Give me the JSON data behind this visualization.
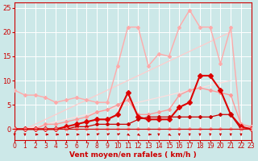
{
  "background_color": "#cce8e8",
  "grid_color": "#aacccc",
  "xlabel": "Vent moyen/en rafales ( km/h )",
  "xlim": [
    0,
    23
  ],
  "ylim": [
    0,
    26
  ],
  "yticks": [
    0,
    5,
    10,
    15,
    20,
    25
  ],
  "xticks": [
    0,
    1,
    2,
    3,
    4,
    5,
    6,
    7,
    8,
    9,
    10,
    11,
    12,
    13,
    14,
    15,
    16,
    17,
    18,
    19,
    20,
    21,
    22,
    23
  ],
  "lines": [
    {
      "x": [
        0,
        1,
        2,
        3,
        4,
        5,
        6,
        7,
        8,
        9,
        10,
        11,
        12,
        13,
        14,
        15,
        16,
        17,
        18,
        19,
        20,
        21
      ],
      "y": [
        0,
        0,
        1,
        2,
        3,
        4,
        5,
        6,
        7,
        8,
        9,
        10,
        11,
        12,
        13,
        14,
        15,
        16,
        17,
        18,
        19,
        20
      ],
      "color": "#ffcccc",
      "linewidth": 0.9,
      "marker": null,
      "markersize": 0
    },
    {
      "x": [
        0,
        1,
        2,
        3,
        4,
        5,
        6,
        7,
        8,
        9,
        10,
        11,
        12,
        13,
        14,
        15,
        16,
        17,
        18,
        19,
        20,
        21
      ],
      "y": [
        0,
        0,
        0.5,
        1,
        1.5,
        2,
        2.5,
        3,
        3.5,
        4,
        4.5,
        5,
        5.5,
        6,
        6.5,
        7,
        7.5,
        8,
        8.5,
        9,
        9.5,
        10
      ],
      "color": "#ffdddd",
      "linewidth": 0.9,
      "marker": null,
      "markersize": 0
    },
    {
      "x": [
        0,
        1,
        2,
        3,
        4,
        5,
        6,
        7,
        8,
        9,
        10,
        11,
        12,
        13,
        14,
        15,
        16,
        17,
        18,
        19,
        20,
        21,
        22,
        23
      ],
      "y": [
        8,
        7,
        7,
        6.5,
        5.5,
        6,
        6.5,
        6,
        5.5,
        5.5,
        13,
        21,
        21,
        13,
        15.5,
        15,
        21,
        24.5,
        21,
        21,
        13.5,
        21,
        0,
        0.5
      ],
      "color": "#ffaaaa",
      "linewidth": 1.0,
      "marker": "D",
      "markersize": 2
    },
    {
      "x": [
        0,
        1,
        2,
        3,
        4,
        5,
        6,
        7,
        8,
        9,
        10,
        11,
        12,
        13,
        14,
        15,
        16,
        17,
        18,
        19,
        20,
        21,
        22,
        23
      ],
      "y": [
        0,
        0,
        0,
        1,
        1,
        1.5,
        2,
        2.5,
        3.5,
        4,
        5,
        6,
        3,
        3,
        3.5,
        4,
        7,
        8,
        8.5,
        8,
        7.5,
        7,
        1,
        0.5
      ],
      "color": "#ff9999",
      "linewidth": 1.0,
      "marker": "D",
      "markersize": 2
    },
    {
      "x": [
        0,
        1,
        2,
        3,
        4,
        5,
        6,
        7,
        8,
        9,
        10,
        11,
        12,
        13,
        14,
        15,
        16,
        17,
        18,
        19,
        20,
        21,
        22,
        23
      ],
      "y": [
        0,
        0,
        0,
        0,
        0,
        0.5,
        1,
        1.5,
        2,
        2,
        3,
        7.5,
        2.5,
        2,
        2,
        2,
        4.5,
        5.5,
        11,
        11,
        8,
        3,
        0.5,
        0
      ],
      "color": "#dd0000",
      "linewidth": 1.5,
      "marker": "D",
      "markersize": 3
    },
    {
      "x": [
        0,
        1,
        2,
        3,
        4,
        5,
        6,
        7,
        8,
        9,
        10,
        11,
        12,
        13,
        14,
        15,
        16,
        17,
        18,
        19,
        20,
        21,
        22,
        23
      ],
      "y": [
        0,
        0,
        0,
        0,
        0,
        0,
        0.5,
        0.5,
        1,
        1,
        1,
        1,
        2,
        2.5,
        2.5,
        2.5,
        2.5,
        2.5,
        2.5,
        2.5,
        3,
        3,
        0,
        0
      ],
      "color": "#cc0000",
      "linewidth": 0.9,
      "marker": "D",
      "markersize": 2
    },
    {
      "x": [
        0,
        1,
        2,
        3,
        4,
        5,
        6,
        7,
        8,
        9,
        10,
        11,
        12,
        13,
        14,
        15,
        16,
        17,
        18,
        19,
        20,
        21,
        22,
        23
      ],
      "y": [
        0,
        0,
        0,
        0,
        0,
        0,
        0,
        0,
        0,
        0,
        0,
        0,
        0,
        0,
        0,
        0,
        0,
        0,
        0,
        0,
        0,
        0,
        0,
        0
      ],
      "color": "#ff9999",
      "linewidth": 0.8,
      "marker": "D",
      "markersize": 2
    }
  ],
  "arrow_color": "#cc0000",
  "xlabel_color": "#cc0000",
  "tick_color": "#cc0000",
  "axis_color": "#cc0000"
}
